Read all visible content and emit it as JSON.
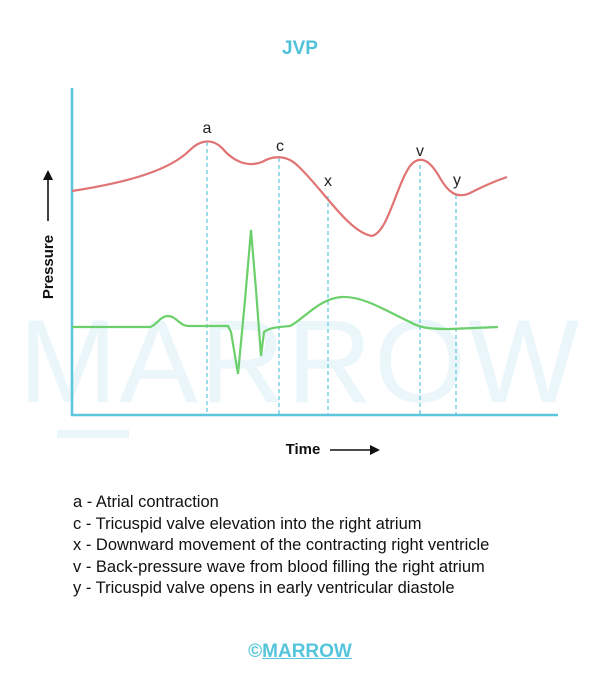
{
  "title": "JVP",
  "watermark": "MARROW",
  "axes": {
    "y_label": "Pressure",
    "x_label": "Time",
    "axis_color": "#5cc6dc"
  },
  "waves": {
    "jvp_color": "#e07373",
    "ecg_color": "#6bd06b",
    "marker_color": "#5cc6dc"
  },
  "points": {
    "a": "a",
    "c": "c",
    "x": "x",
    "v": "v",
    "y": "y"
  },
  "legend": [
    "a - Atrial contraction",
    "c - Tricuspid valve elevation into the right atrium",
    "x - Downward movement of the contracting right ventricle",
    "v - Back-pressure wave from blood filling the right atrium",
    "y - Tricuspid valve opens in early ventricular diastole"
  ],
  "footer": {
    "copyright": "©",
    "brand": "MARROW"
  }
}
